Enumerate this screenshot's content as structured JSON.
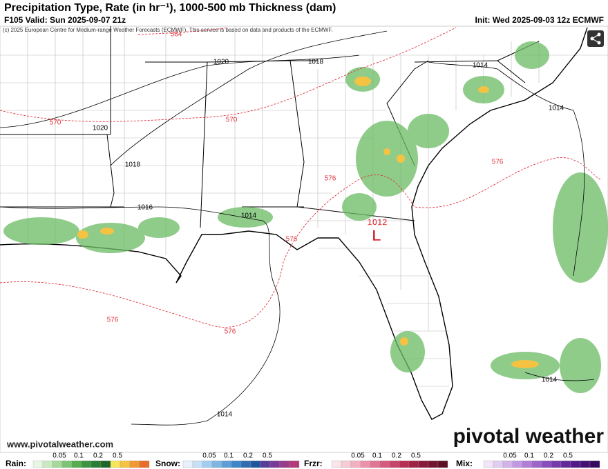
{
  "header": {
    "title": "Precipitation Type, Rate (in hr⁻¹), 1000-500 mb Thickness (dam)",
    "valid": "F105 Valid: Sun 2025-09-07 21z",
    "init": "Init: Wed 2025-09-03 12z ECMWF",
    "copyright": "(c) 2025 European Centre for Medium-range Weather Forecasts (ECMWF). This service is based on data and products of the ECMWF."
  },
  "map": {
    "isobar_labels": [
      "1020",
      "1018",
      "1014",
      "1014",
      "1020",
      "1018",
      "1016",
      "1014",
      "1014",
      "1014"
    ],
    "thickness_labels": [
      "564",
      "570",
      "570",
      "576",
      "576",
      "576",
      "576",
      "576"
    ],
    "low": {
      "pressure": "1012",
      "symbol": "L"
    }
  },
  "footer": {
    "url": "www.pivotalweather.com",
    "brand": "pivotal weather"
  },
  "legend": [
    {
      "name": "Rain:",
      "ticks": [
        0.05,
        0.1,
        0.2,
        0.5
      ],
      "colors": [
        "#e8f5e4",
        "#c9eac1",
        "#a4d99a",
        "#7cc573",
        "#55ad50",
        "#3a9540",
        "#2a7d33",
        "#1f6628",
        "#f6e65b",
        "#f5c242",
        "#f09a33",
        "#e86d2a"
      ]
    },
    {
      "name": "Snow:",
      "ticks": [
        0.05,
        0.1,
        0.2,
        0.5
      ],
      "colors": [
        "#e6f1fb",
        "#c6e0f5",
        "#a3cdee",
        "#7fb6e4",
        "#5b9ed8",
        "#3f86c9",
        "#2e6db4",
        "#22569c",
        "#5a3d9a",
        "#7a3a9a",
        "#9a3a8a",
        "#b23a7a"
      ]
    },
    {
      "name": "Frzr:",
      "ticks": [
        0.05,
        0.1,
        0.2,
        0.5
      ],
      "colors": [
        "#fbe4ea",
        "#f7cbd6",
        "#f2b0c1",
        "#ec92aa",
        "#e27594",
        "#d65b7e",
        "#c84468",
        "#b63056",
        "#a02346",
        "#8a1a3a",
        "#741430",
        "#5e0f27"
      ]
    },
    {
      "name": "Mix:",
      "ticks": [
        0.05,
        0.1,
        0.2,
        0.5
      ],
      "colors": [
        "#f1e6f8",
        "#e2cdf1",
        "#d2b3ea",
        "#c198e1",
        "#af7ed7",
        "#9c65cb",
        "#894ebd",
        "#763aad",
        "#63299b",
        "#521c88",
        "#431274",
        "#350b60"
      ]
    }
  ]
}
